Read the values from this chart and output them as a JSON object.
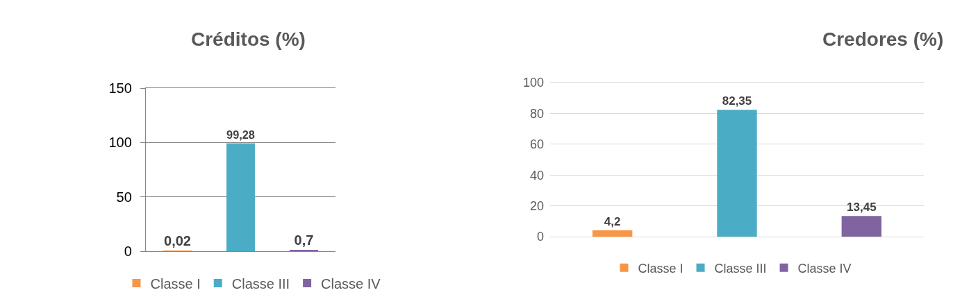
{
  "chart_data": [
    {
      "type": "bar",
      "title": "Créditos (%)",
      "categories": [
        null,
        null,
        null
      ],
      "series": [
        {
          "name": "Classe I",
          "color": "#f79646",
          "values": [
            0.02,
            null,
            null
          ],
          "value_labels": [
            "0,02",
            null,
            null
          ]
        },
        {
          "name": "Classe III",
          "color": "#4bacc6",
          "values": [
            null,
            99.28,
            null
          ],
          "value_labels": [
            null,
            "99,28",
            null
          ]
        },
        {
          "name": "Classe IV",
          "color": "#8064a2",
          "values": [
            null,
            null,
            0.7
          ],
          "value_labels": [
            null,
            null,
            "0,7"
          ]
        }
      ],
      "ylim": [
        0,
        150
      ],
      "yticks": [
        0,
        50,
        100,
        150
      ],
      "grid": "y",
      "legend": "bottom"
    },
    {
      "type": "bar",
      "title": "Credores (%)",
      "categories": [
        null,
        null,
        null
      ],
      "series": [
        {
          "name": "Classe I",
          "color": "#f79646",
          "values": [
            4.2,
            null,
            null
          ],
          "value_labels": [
            "4,2",
            null,
            null
          ]
        },
        {
          "name": "Classe III",
          "color": "#4bacc6",
          "values": [
            null,
            82.35,
            null
          ],
          "value_labels": [
            null,
            "82,35",
            null
          ]
        },
        {
          "name": "Classe IV",
          "color": "#8064a2",
          "values": [
            null,
            null,
            13.45
          ],
          "value_labels": [
            null,
            null,
            "13,45"
          ]
        }
      ],
      "ylim": [
        0,
        100
      ],
      "yticks": [
        0,
        20,
        40,
        60,
        80,
        100
      ],
      "grid": "y",
      "legend": "bottom"
    }
  ]
}
